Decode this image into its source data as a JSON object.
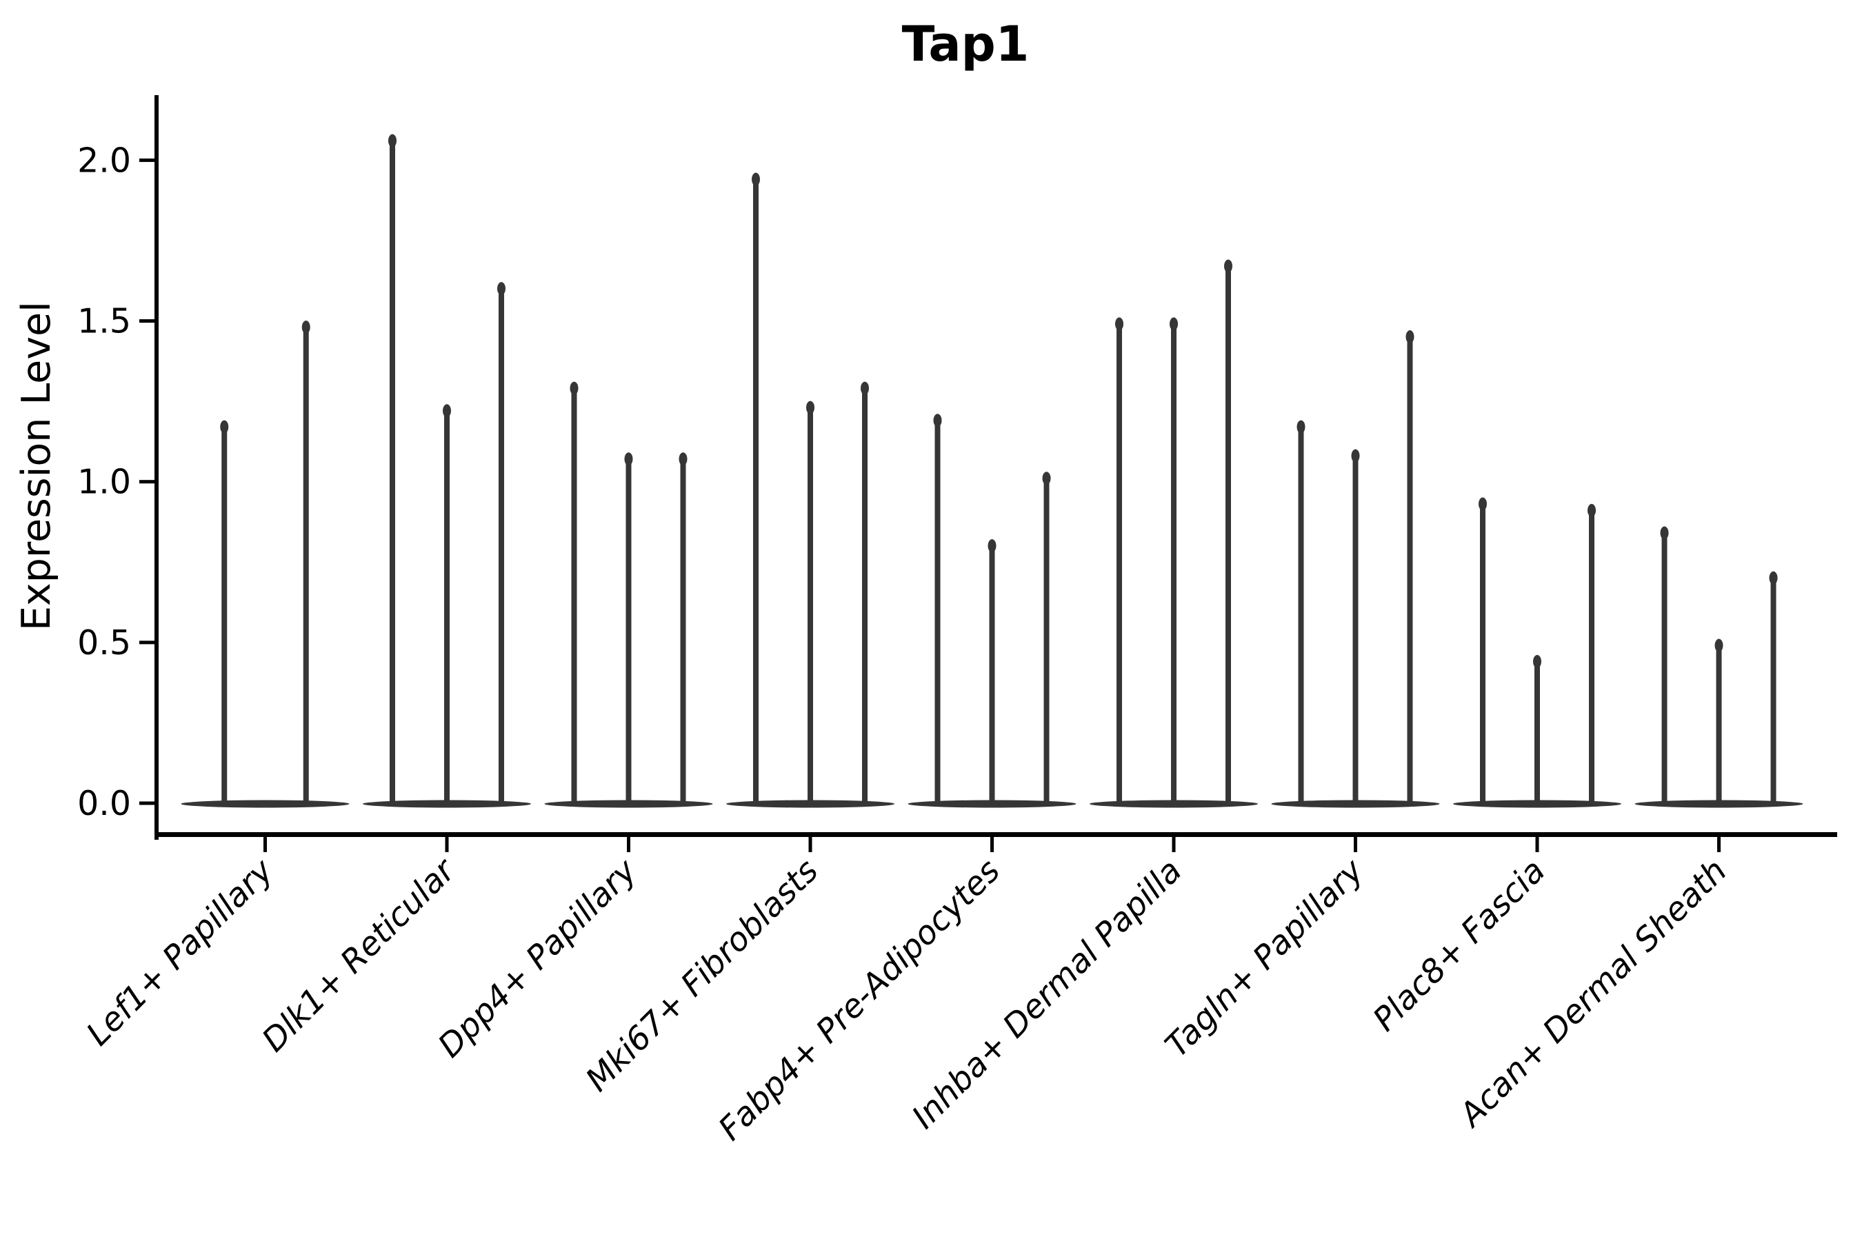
{
  "figure": {
    "title": "Tap1",
    "y_axis_label": "Expression Level"
  },
  "chart_data": {
    "type": "violin",
    "title": "Tap1",
    "xlabel": "",
    "ylabel": "Expression Level",
    "ylim": [
      -0.05,
      2.2
    ],
    "grid": false,
    "legend": "none",
    "violin_style": "needle-thin sparse-expression violins; flat density bulge at 0 with a thin spike up to the max value; 2 violins in first category, 3 in all others",
    "yticks": [
      "0.0",
      "0.5",
      "1.0",
      "1.5",
      "2.0"
    ],
    "ytick_values": [
      0.0,
      0.5,
      1.0,
      1.5,
      2.0
    ],
    "categories": [
      "Lef1+ Papillary",
      "Dlk1+ Reticular",
      "Dpp4+ Papillary",
      "Mki67+ Fibroblasts",
      "Fabp4+ Pre-Adipocytes",
      "Inhba+ Dermal Papilla",
      "Tagln+ Papillary",
      "Plac8+ Fascia",
      "Acan+ Dermal Sheath"
    ],
    "groups": [
      {
        "category": "Lef1+ Papillary",
        "violin_max_values": [
          1.19,
          1.5
        ]
      },
      {
        "category": "Dlk1+ Reticular",
        "violin_max_values": [
          2.08,
          1.24,
          1.62
        ]
      },
      {
        "category": "Dpp4+ Papillary",
        "violin_max_values": [
          1.31,
          1.09,
          1.09
        ]
      },
      {
        "category": "Mki67+ Fibroblasts",
        "violin_max_values": [
          1.96,
          1.25,
          1.31
        ]
      },
      {
        "category": "Fabp4+ Pre-Adipocytes",
        "violin_max_values": [
          1.21,
          0.82,
          1.03
        ]
      },
      {
        "category": "Inhba+ Dermal Papilla",
        "violin_max_values": [
          1.51,
          1.51,
          1.69
        ]
      },
      {
        "category": "Tagln+ Papillary",
        "violin_max_values": [
          1.19,
          1.1,
          1.47
        ]
      },
      {
        "category": "Plac8+ Fascia",
        "violin_max_values": [
          0.95,
          0.46,
          0.93
        ]
      },
      {
        "category": "Acan+ Dermal Sheath",
        "violin_max_values": [
          0.86,
          0.51,
          0.72
        ]
      }
    ],
    "colors": {
      "violin": "#363636",
      "axis": "#000000",
      "text": "#000000",
      "background": "#ffffff"
    }
  }
}
